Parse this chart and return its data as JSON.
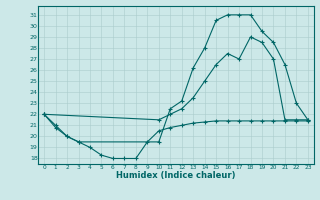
{
  "xlabel": "Humidex (Indice chaleur)",
  "xlim": [
    -0.5,
    23.5
  ],
  "ylim": [
    17.5,
    31.8
  ],
  "xticks": [
    0,
    1,
    2,
    3,
    4,
    5,
    6,
    7,
    8,
    9,
    10,
    11,
    12,
    13,
    14,
    15,
    16,
    17,
    18,
    19,
    20,
    21,
    22,
    23
  ],
  "yticks": [
    18,
    19,
    20,
    21,
    22,
    23,
    24,
    25,
    26,
    27,
    28,
    29,
    30,
    31
  ],
  "bg_color": "#cce8e8",
  "line_color": "#006666",
  "grid_color": "#aacccc",
  "curves": {
    "top": {
      "x": [
        0,
        1,
        2,
        3,
        10,
        11,
        12,
        13,
        14,
        15,
        16,
        17,
        18,
        19,
        20,
        21,
        22,
        23
      ],
      "y": [
        22,
        21.0,
        20.0,
        19.5,
        19.5,
        22.5,
        23.2,
        26.2,
        28.0,
        30.5,
        31.0,
        31.0,
        31.0,
        29.5,
        28.5,
        26.5,
        23.0,
        21.5
      ]
    },
    "mid": {
      "x": [
        0,
        10,
        11,
        12,
        13,
        14,
        15,
        16,
        17,
        18,
        19,
        20,
        21,
        22,
        23
      ],
      "y": [
        22,
        21.5,
        22.0,
        22.5,
        23.5,
        25.0,
        26.5,
        27.5,
        27.0,
        29.0,
        28.5,
        27.0,
        21.5,
        21.5,
        21.5
      ]
    },
    "bot": {
      "x": [
        0,
        1,
        2,
        3,
        4,
        5,
        6,
        7,
        8,
        9,
        10,
        11,
        12,
        13,
        14,
        15,
        16,
        17,
        18,
        19,
        20,
        21,
        22,
        23
      ],
      "y": [
        22,
        20.8,
        20.0,
        19.5,
        19.0,
        18.3,
        18.0,
        18.0,
        18.0,
        19.5,
        20.5,
        20.8,
        21.0,
        21.2,
        21.3,
        21.4,
        21.4,
        21.4,
        21.4,
        21.4,
        21.4,
        21.4,
        21.4,
        21.4
      ]
    }
  }
}
